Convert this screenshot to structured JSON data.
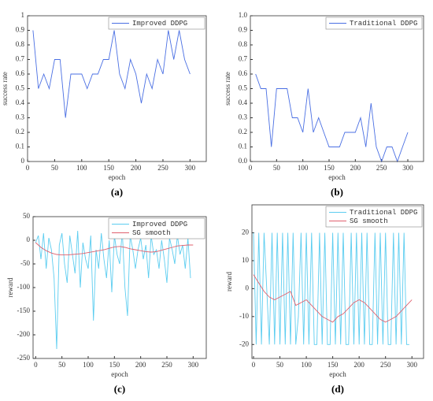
{
  "chart_data": [
    {
      "type": "line",
      "label": "(a)",
      "xlabel": "epoch",
      "ylabel": "success rate",
      "legend": "upper right",
      "xlim": [
        0,
        330
      ],
      "ylim": [
        0,
        1
      ],
      "xticks": [
        0,
        50,
        100,
        150,
        200,
        250,
        300
      ],
      "yticks": [
        0,
        0.1,
        0.2,
        0.3,
        0.4,
        0.5,
        0.6,
        0.7,
        0.8,
        0.9,
        1
      ],
      "series": [
        {
          "name": "Improved DDPG",
          "color": "#4a6fe3",
          "x": [
            10,
            20,
            30,
            40,
            50,
            60,
            70,
            80,
            90,
            100,
            110,
            120,
            130,
            140,
            150,
            160,
            170,
            180,
            190,
            200,
            210,
            220,
            230,
            240,
            250,
            260,
            270,
            280,
            290,
            300
          ],
          "values": [
            0.9,
            0.5,
            0.6,
            0.5,
            0.7,
            0.7,
            0.3,
            0.6,
            0.6,
            0.6,
            0.5,
            0.6,
            0.6,
            0.7,
            0.7,
            0.9,
            0.6,
            0.5,
            0.7,
            0.6,
            0.4,
            0.6,
            0.5,
            0.7,
            0.6,
            0.9,
            0.7,
            0.9,
            0.7,
            0.6
          ]
        }
      ]
    },
    {
      "type": "line",
      "label": "(b)",
      "xlabel": "epoch",
      "ylabel": "success rate",
      "legend": "upper right",
      "xlim": [
        0,
        330
      ],
      "ylim": [
        0,
        1
      ],
      "xticks": [
        0,
        50,
        100,
        150,
        200,
        250,
        300
      ],
      "yticks": [
        {
          "value": 0,
          "label": "0.0"
        },
        0.1,
        0.2,
        0.3,
        0.4,
        0.5,
        0.6,
        0.7,
        0.8,
        0.9,
        {
          "value": 1,
          "label": "1.0"
        }
      ],
      "series": [
        {
          "name": "Traditional DDPG",
          "color": "#4a6fe3",
          "x": [
            10,
            20,
            30,
            40,
            50,
            60,
            70,
            80,
            90,
            100,
            110,
            120,
            130,
            140,
            150,
            160,
            170,
            180,
            190,
            200,
            210,
            220,
            230,
            240,
            250,
            260,
            270,
            280,
            290,
            300
          ],
          "values": [
            0.6,
            0.5,
            0.5,
            0.1,
            0.5,
            0.5,
            0.5,
            0.3,
            0.3,
            0.2,
            0.5,
            0.2,
            0.3,
            0.2,
            0.1,
            0.1,
            0.1,
            0.2,
            0.2,
            0.2,
            0.3,
            0.1,
            0.4,
            0.1,
            0,
            0.1,
            0.1,
            0,
            0.1,
            0.2
          ]
        }
      ]
    },
    {
      "type": "line",
      "label": "(c)",
      "xlabel": "epoch",
      "ylabel": "reward",
      "legend": "upper right",
      "xlim": [
        -5,
        325
      ],
      "ylim": [
        -250,
        50
      ],
      "xticks": [
        0,
        50,
        100,
        150,
        200,
        250,
        300
      ],
      "yticks": [
        -250,
        -200,
        -150,
        -100,
        -50,
        0,
        50
      ],
      "series": [
        {
          "name": "Improved DDPG",
          "color": "#5ccdf0",
          "x": [
            0,
            5,
            10,
            15,
            20,
            25,
            30,
            35,
            40,
            45,
            50,
            55,
            60,
            65,
            70,
            75,
            80,
            85,
            90,
            95,
            100,
            105,
            110,
            115,
            120,
            125,
            130,
            135,
            140,
            145,
            150,
            155,
            160,
            165,
            170,
            175,
            180,
            185,
            190,
            195,
            200,
            205,
            210,
            215,
            220,
            225,
            230,
            235,
            240,
            245,
            250,
            255,
            260,
            265,
            270,
            275,
            280,
            285,
            290,
            295
          ],
          "values": [
            -5,
            10,
            -40,
            15,
            -60,
            5,
            -20,
            -80,
            -230,
            -10,
            15,
            -50,
            -90,
            10,
            -30,
            -70,
            20,
            -100,
            -5,
            -40,
            -60,
            10,
            -170,
            -20,
            -60,
            15,
            -40,
            -80,
            0,
            -110,
            10,
            -30,
            -50,
            20,
            -100,
            -160,
            10,
            -20,
            -60,
            -20,
            5,
            -40,
            -10,
            -80,
            10,
            -30,
            -20,
            -60,
            0,
            -40,
            -90,
            5,
            -20,
            -50,
            10,
            -30,
            -10,
            -60,
            5,
            -80
          ]
        },
        {
          "name": "SG smooth",
          "color": "#e0606e",
          "x": [
            0,
            10,
            20,
            30,
            40,
            50,
            60,
            70,
            80,
            90,
            100,
            110,
            120,
            130,
            140,
            150,
            160,
            170,
            180,
            190,
            200,
            210,
            220,
            230,
            240,
            250,
            260,
            270,
            280,
            290,
            300
          ],
          "values": [
            -5,
            -15,
            -22,
            -27,
            -30,
            -31,
            -31,
            -30,
            -29,
            -28,
            -26,
            -24,
            -22,
            -20,
            -17,
            -14,
            -13,
            -15,
            -18,
            -20,
            -22,
            -24,
            -25,
            -24,
            -21,
            -18,
            -15,
            -12,
            -11,
            -10,
            -10
          ]
        }
      ]
    },
    {
      "type": "line",
      "label": "(d)",
      "xlabel": "epoch",
      "ylabel": "reward",
      "legend": "upper right",
      "xlim": [
        -3,
        322
      ],
      "ylim": [
        -25,
        30
      ],
      "xticks": [
        0,
        50,
        100,
        150,
        200,
        250,
        300
      ],
      "yticks": [
        -20,
        -10,
        0,
        10,
        20
      ],
      "series": [
        {
          "name": "Traditional DDPG",
          "color": "#5ccdf0",
          "x": [
            0,
            5,
            10,
            15,
            20,
            25,
            30,
            35,
            40,
            45,
            50,
            55,
            60,
            65,
            70,
            75,
            80,
            85,
            90,
            95,
            100,
            105,
            110,
            115,
            120,
            125,
            130,
            135,
            140,
            145,
            150,
            155,
            160,
            165,
            170,
            175,
            180,
            185,
            190,
            195,
            200,
            205,
            210,
            215,
            220,
            225,
            230,
            235,
            240,
            245,
            250,
            255,
            260,
            265,
            270,
            275,
            280,
            285,
            290,
            295
          ],
          "values": [
            20,
            -20,
            20,
            -20,
            20,
            0,
            -20,
            20,
            -20,
            20,
            -20,
            20,
            -20,
            20,
            -20,
            20,
            -20,
            -10,
            20,
            -20,
            20,
            -20,
            20,
            -20,
            -20,
            20,
            -20,
            20,
            -20,
            -20,
            20,
            -20,
            20,
            -20,
            20,
            -20,
            -20,
            20,
            -20,
            20,
            -20,
            20,
            -20,
            20,
            -20,
            -20,
            20,
            -20,
            20,
            -20,
            20,
            -20,
            -20,
            20,
            -20,
            20,
            -20,
            20,
            -20,
            -20
          ]
        },
        {
          "name": "SG smooth",
          "color": "#e0606e",
          "x": [
            0,
            10,
            20,
            30,
            40,
            50,
            60,
            70,
            80,
            90,
            100,
            110,
            120,
            130,
            140,
            150,
            160,
            170,
            180,
            190,
            200,
            210,
            220,
            230,
            240,
            250,
            260,
            270,
            280,
            290,
            300
          ],
          "values": [
            5,
            2,
            -1,
            -3,
            -4,
            -3,
            -2,
            -1,
            -6,
            -5,
            -4,
            -6,
            -8,
            -10,
            -11,
            -12,
            -10,
            -9,
            -7,
            -5,
            -4,
            -5,
            -7,
            -9,
            -11,
            -12,
            -11,
            -10,
            -8,
            -6,
            -4
          ]
        }
      ]
    }
  ]
}
